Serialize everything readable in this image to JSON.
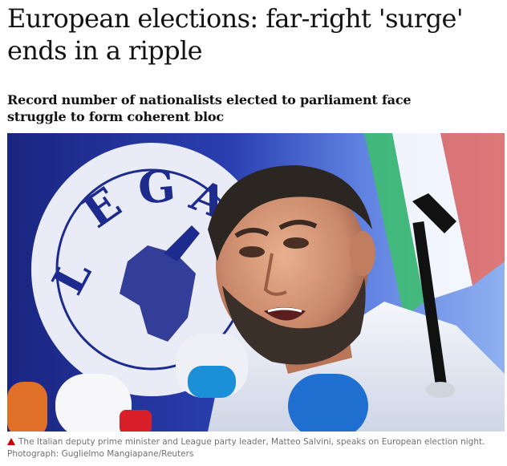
{
  "article": {
    "headline": "European elections: far-right 'surge' ends in a ripple",
    "standfirst": "Record number of nationalists elected to parliament face struggle to form coherent bloc",
    "image": {
      "logo_text": "LEGA",
      "caption": "The Italian deputy prime minister and League party leader, Matteo Salvini, speaks on European election night.",
      "credit": "Photograph: Guglielmo Mangiapane/Reuters",
      "caption_icon": "red-triangle-icon"
    }
  },
  "colors": {
    "headline": "#121212",
    "caption": "#707070",
    "caption_marker": "#c70000",
    "logo_blue": "#1e2b8e"
  }
}
